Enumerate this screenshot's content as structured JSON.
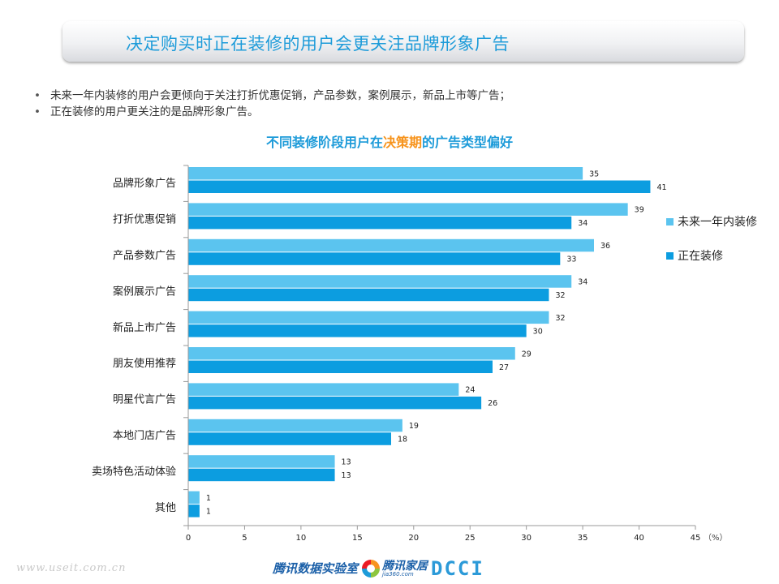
{
  "header": {
    "title": "决定购买时正在装修的用户会更关注品牌形象广告"
  },
  "bullets": [
    "未来一年内装修的用户会更倾向于关注打折优惠促销，产品参数，案例展示，新品上市等广告；",
    "正在装修的用户更关注的是品牌形象广告。"
  ],
  "chart_title": {
    "before": "不同装修阶段用户在",
    "highlight": "决策期",
    "after": "的广告类型偏好"
  },
  "colors": {
    "series1": "#5bc4ef",
    "series2": "#0c9de0",
    "title": "#1d9bd9",
    "highlight": "#f7941d"
  },
  "chart_data": {
    "type": "bar",
    "orientation": "horizontal",
    "categories": [
      "品牌形象广告",
      "打折优惠促销",
      "产品参数广告",
      "案例展示广告",
      "新品上市广告",
      "朋友使用推荐",
      "明星代言广告",
      "本地门店广告",
      "卖场特色活动体验",
      "其他"
    ],
    "series": [
      {
        "name": "未来一年内装修",
        "values": [
          35,
          39,
          36,
          34,
          32,
          29,
          24,
          19,
          13,
          1
        ]
      },
      {
        "name": "正在装修",
        "values": [
          41,
          34,
          33,
          32,
          30,
          27,
          26,
          18,
          13,
          1
        ]
      }
    ],
    "xlim": [
      0,
      45
    ],
    "xticks": [
      0,
      5,
      10,
      15,
      20,
      25,
      30,
      35,
      40,
      45
    ],
    "x_unit": "（%）",
    "legend_position": "right",
    "grid": false
  },
  "footer": {
    "watermark": "www.useit.com.cn",
    "logo1": "腾讯数据实验室",
    "logo2_main": "腾讯家居",
    "logo2_sub": "jia360.com",
    "logo3": "DCCI"
  }
}
